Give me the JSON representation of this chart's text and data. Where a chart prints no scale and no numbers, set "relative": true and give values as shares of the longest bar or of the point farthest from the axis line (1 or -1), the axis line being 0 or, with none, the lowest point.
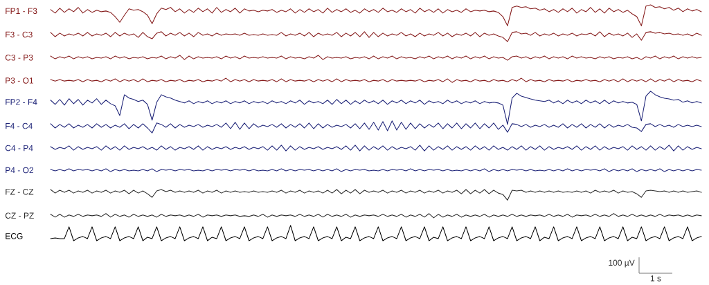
{
  "chart_data": {
    "type": "line",
    "relative": true,
    "categories": [
      null,
      null,
      null,
      null,
      null,
      null,
      null,
      null,
      null,
      null,
      null,
      null,
      null,
      null,
      null,
      null,
      null,
      null,
      null,
      null,
      null,
      null,
      null,
      null,
      null,
      null,
      null,
      null,
      null,
      null,
      null,
      null,
      null,
      null,
      null,
      null,
      null,
      null,
      null,
      null,
      null,
      null,
      null,
      null,
      null,
      null,
      null,
      null,
      null,
      null,
      null,
      null,
      null,
      null,
      null,
      null,
      null,
      null,
      null,
      null,
      null,
      null,
      null,
      null,
      null,
      null,
      null,
      null,
      null,
      null,
      null,
      null,
      null,
      null,
      null,
      null,
      null,
      null,
      null,
      null,
      null,
      null,
      null,
      null,
      null,
      null,
      null,
      null,
      null,
      null,
      null,
      null,
      null,
      null,
      null,
      null,
      null,
      null,
      null,
      null,
      null,
      null,
      null,
      null,
      null,
      null,
      null,
      null,
      null,
      null,
      null,
      null,
      null,
      null,
      null,
      null,
      null,
      null,
      null,
      null,
      null,
      null,
      null,
      null,
      null,
      null,
      null,
      null,
      null,
      null,
      null,
      null,
      null,
      null,
      null,
      null,
      null,
      null,
      null,
      null,
      null,
      null
    ],
    "series": [
      {
        "name": "FP1 - F3",
        "color": "#861c1c",
        "values": [
          0.98,
          0.965,
          0.986,
          0.968,
          0.983,
          0.971,
          0.989,
          0.965,
          0.98,
          0.968,
          0.977,
          0.971,
          0.974,
          0.968,
          0.95,
          0.926,
          0.956,
          0.983,
          0.977,
          0.98,
          0.971,
          0.956,
          0.92,
          0.962,
          0.986,
          0.98,
          0.989,
          0.971,
          0.983,
          0.965,
          0.98,
          0.968,
          0.986,
          0.971,
          0.983,
          0.965,
          0.989,
          0.968,
          0.98,
          0.971,
          0.986,
          0.965,
          0.983,
          0.974,
          0.977,
          0.971,
          0.977,
          0.974,
          0.98,
          0.968,
          0.977,
          0.971,
          0.983,
          0.965,
          0.98,
          0.968,
          0.983,
          0.971,
          0.98,
          0.965,
          0.986,
          0.968,
          0.98,
          0.971,
          0.983,
          0.968,
          0.977,
          0.965,
          0.983,
          0.971,
          0.98,
          0.968,
          0.986,
          0.971,
          0.977,
          0.968,
          0.983,
          0.971,
          0.98,
          0.965,
          0.986,
          0.971,
          0.98,
          0.968,
          0.983,
          0.965,
          0.98,
          0.971,
          0.977,
          0.968,
          0.983,
          0.971,
          0.977,
          0.974,
          0.977,
          0.971,
          0.974,
          0.968,
          0.95,
          0.911,
          0.989,
          0.995,
          0.989,
          0.992,
          0.983,
          0.986,
          0.977,
          0.983,
          0.971,
          0.98,
          0.968,
          0.983,
          0.971,
          0.986,
          0.965,
          0.98,
          0.971,
          0.989,
          0.968,
          0.983,
          0.965,
          0.986,
          0.971,
          0.98,
          0.968,
          0.977,
          0.962,
          0.95,
          0.911,
          0.995,
          1.0,
          0.989,
          0.992,
          0.983,
          0.989,
          0.977,
          0.986,
          0.971,
          0.983,
          0.974,
          0.98,
          0.971
        ]
      },
      {
        "name": "F3 - C3",
        "color": "#861c1c",
        "values": [
          0.883,
          0.865,
          0.88,
          0.868,
          0.877,
          0.871,
          0.88,
          0.868,
          0.883,
          0.868,
          0.877,
          0.871,
          0.88,
          0.865,
          0.883,
          0.868,
          0.88,
          0.871,
          0.877,
          0.862,
          0.883,
          0.865,
          0.856,
          0.88,
          0.886,
          0.868,
          0.88,
          0.871,
          0.883,
          0.868,
          0.88,
          0.865,
          0.883,
          0.871,
          0.877,
          0.868,
          0.88,
          0.871,
          0.877,
          0.874,
          0.877,
          0.871,
          0.88,
          0.871,
          0.874,
          0.871,
          0.877,
          0.871,
          0.874,
          0.871,
          0.883,
          0.868,
          0.877,
          0.871,
          0.88,
          0.868,
          0.883,
          0.865,
          0.88,
          0.871,
          0.877,
          0.871,
          0.883,
          0.865,
          0.88,
          0.868,
          0.883,
          0.865,
          0.886,
          0.862,
          0.883,
          0.865,
          0.88,
          0.868,
          0.877,
          0.871,
          0.883,
          0.868,
          0.877,
          0.865,
          0.88,
          0.868,
          0.877,
          0.871,
          0.883,
          0.868,
          0.88,
          0.865,
          0.877,
          0.871,
          0.88,
          0.868,
          0.883,
          0.865,
          0.88,
          0.871,
          0.877,
          0.868,
          0.862,
          0.844,
          0.883,
          0.886,
          0.877,
          0.88,
          0.871,
          0.883,
          0.868,
          0.877,
          0.871,
          0.88,
          0.868,
          0.877,
          0.871,
          0.88,
          0.868,
          0.877,
          0.874,
          0.88,
          0.868,
          0.886,
          0.865,
          0.88,
          0.871,
          0.877,
          0.868,
          0.88,
          0.862,
          0.877,
          0.85,
          0.883,
          0.886,
          0.88,
          0.883,
          0.877,
          0.88,
          0.874,
          0.877,
          0.871,
          0.877,
          0.868,
          0.88,
          0.871
        ]
      },
      {
        "name": "C3 - P3",
        "color": "#861c1c",
        "values": [
          0.783,
          0.771,
          0.78,
          0.774,
          0.783,
          0.771,
          0.78,
          0.774,
          0.78,
          0.771,
          0.777,
          0.774,
          0.78,
          0.771,
          0.783,
          0.774,
          0.78,
          0.771,
          0.777,
          0.774,
          0.78,
          0.771,
          0.777,
          0.774,
          0.783,
          0.771,
          0.78,
          0.774,
          0.786,
          0.768,
          0.783,
          0.771,
          0.78,
          0.774,
          0.777,
          0.774,
          0.78,
          0.771,
          0.783,
          0.774,
          0.78,
          0.771,
          0.783,
          0.774,
          0.777,
          0.774,
          0.78,
          0.774,
          0.777,
          0.774,
          0.783,
          0.771,
          0.78,
          0.774,
          0.777,
          0.771,
          0.78,
          0.774,
          0.786,
          0.768,
          0.78,
          0.774,
          0.777,
          0.774,
          0.78,
          0.771,
          0.777,
          0.774,
          0.78,
          0.771,
          0.783,
          0.771,
          0.78,
          0.774,
          0.783,
          0.771,
          0.78,
          0.774,
          0.777,
          0.771,
          0.78,
          0.774,
          0.783,
          0.771,
          0.78,
          0.774,
          0.783,
          0.771,
          0.78,
          0.774,
          0.783,
          0.771,
          0.78,
          0.774,
          0.783,
          0.771,
          0.78,
          0.774,
          0.777,
          0.765,
          0.78,
          0.783,
          0.774,
          0.78,
          0.771,
          0.78,
          0.774,
          0.783,
          0.771,
          0.78,
          0.774,
          0.78,
          0.771,
          0.783,
          0.774,
          0.78,
          0.774,
          0.777,
          0.771,
          0.78,
          0.774,
          0.78,
          0.771,
          0.777,
          0.774,
          0.78,
          0.771,
          0.777,
          0.768,
          0.78,
          0.774,
          0.783,
          0.771,
          0.78,
          0.774,
          0.783,
          0.771,
          0.78,
          0.774,
          0.78,
          0.774,
          0.777
        ]
      },
      {
        "name": "P3 - O1",
        "color": "#861c1c",
        "values": [
          0.683,
          0.677,
          0.683,
          0.677,
          0.68,
          0.677,
          0.683,
          0.674,
          0.683,
          0.677,
          0.68,
          0.674,
          0.683,
          0.677,
          0.686,
          0.674,
          0.683,
          0.677,
          0.683,
          0.674,
          0.686,
          0.674,
          0.68,
          0.677,
          0.683,
          0.674,
          0.68,
          0.677,
          0.683,
          0.674,
          0.68,
          0.677,
          0.683,
          0.674,
          0.68,
          0.677,
          0.683,
          0.677,
          0.689,
          0.674,
          0.683,
          0.677,
          0.683,
          0.674,
          0.683,
          0.677,
          0.68,
          0.677,
          0.683,
          0.674,
          0.686,
          0.674,
          0.683,
          0.677,
          0.68,
          0.677,
          0.683,
          0.674,
          0.683,
          0.677,
          0.683,
          0.674,
          0.686,
          0.674,
          0.683,
          0.677,
          0.68,
          0.677,
          0.683,
          0.674,
          0.68,
          0.677,
          0.683,
          0.674,
          0.683,
          0.677,
          0.68,
          0.677,
          0.68,
          0.677,
          0.683,
          0.674,
          0.68,
          0.677,
          0.683,
          0.674,
          0.686,
          0.671,
          0.683,
          0.677,
          0.68,
          0.674,
          0.683,
          0.677,
          0.68,
          0.674,
          0.683,
          0.677,
          0.68,
          0.674,
          0.683,
          0.677,
          0.689,
          0.674,
          0.683,
          0.677,
          0.68,
          0.674,
          0.683,
          0.677,
          0.68,
          0.677,
          0.683,
          0.674,
          0.68,
          0.677,
          0.683,
          0.677,
          0.68,
          0.674,
          0.683,
          0.677,
          0.683,
          0.674,
          0.686,
          0.674,
          0.683,
          0.677,
          0.683,
          0.674,
          0.686,
          0.674,
          0.683,
          0.677,
          0.686,
          0.674,
          0.683,
          0.677,
          0.68,
          0.674,
          0.683,
          0.677
        ]
      },
      {
        "name": "FP2 - F4",
        "color": "#1c2277",
        "values": [
          0.596,
          0.578,
          0.599,
          0.575,
          0.602,
          0.581,
          0.599,
          0.575,
          0.596,
          0.584,
          0.602,
          0.578,
          0.596,
          0.581,
          0.572,
          0.531,
          0.619,
          0.605,
          0.599,
          0.59,
          0.596,
          0.578,
          0.511,
          0.587,
          0.619,
          0.61,
          0.605,
          0.596,
          0.59,
          0.584,
          0.593,
          0.581,
          0.59,
          0.584,
          0.593,
          0.581,
          0.59,
          0.584,
          0.593,
          0.581,
          0.59,
          0.584,
          0.593,
          0.581,
          0.59,
          0.584,
          0.59,
          0.581,
          0.593,
          0.584,
          0.59,
          0.581,
          0.593,
          0.584,
          0.596,
          0.578,
          0.593,
          0.584,
          0.59,
          0.581,
          0.596,
          0.578,
          0.599,
          0.581,
          0.596,
          0.578,
          0.593,
          0.581,
          0.596,
          0.584,
          0.593,
          0.581,
          0.596,
          0.578,
          0.593,
          0.584,
          0.596,
          0.581,
          0.593,
          0.584,
          0.596,
          0.578,
          0.593,
          0.584,
          0.59,
          0.581,
          0.596,
          0.584,
          0.593,
          0.581,
          0.59,
          0.584,
          0.593,
          0.581,
          0.59,
          0.584,
          0.587,
          0.584,
          0.575,
          0.493,
          0.605,
          0.625,
          0.613,
          0.607,
          0.601,
          0.596,
          0.593,
          0.59,
          0.596,
          0.584,
          0.593,
          0.581,
          0.596,
          0.584,
          0.593,
          0.581,
          0.596,
          0.584,
          0.593,
          0.581,
          0.596,
          0.581,
          0.593,
          0.584,
          0.59,
          0.584,
          0.587,
          0.578,
          0.508,
          0.613,
          0.634,
          0.619,
          0.61,
          0.604,
          0.601,
          0.596,
          0.599,
          0.587,
          0.593,
          0.584,
          0.59,
          0.584
        ]
      },
      {
        "name": "F4 - C4",
        "color": "#1c2277",
        "values": [
          0.496,
          0.478,
          0.493,
          0.481,
          0.496,
          0.478,
          0.49,
          0.481,
          0.493,
          0.478,
          0.496,
          0.481,
          0.493,
          0.478,
          0.49,
          0.481,
          0.496,
          0.475,
          0.493,
          0.478,
          0.496,
          0.478,
          0.457,
          0.499,
          0.493,
          0.481,
          0.496,
          0.478,
          0.493,
          0.481,
          0.49,
          0.484,
          0.493,
          0.481,
          0.49,
          0.484,
          0.493,
          0.481,
          0.499,
          0.475,
          0.502,
          0.472,
          0.499,
          0.475,
          0.496,
          0.481,
          0.49,
          0.484,
          0.493,
          0.481,
          0.496,
          0.478,
          0.493,
          0.481,
          0.496,
          0.478,
          0.499,
          0.475,
          0.496,
          0.478,
          0.493,
          0.481,
          0.49,
          0.484,
          0.493,
          0.478,
          0.496,
          0.475,
          0.499,
          0.472,
          0.502,
          0.469,
          0.505,
          0.466,
          0.508,
          0.469,
          0.502,
          0.472,
          0.499,
          0.475,
          0.496,
          0.478,
          0.493,
          0.481,
          0.499,
          0.475,
          0.496,
          0.478,
          0.499,
          0.475,
          0.496,
          0.478,
          0.499,
          0.475,
          0.496,
          0.478,
          0.499,
          0.472,
          0.49,
          0.46,
          0.496,
          0.493,
          0.484,
          0.493,
          0.481,
          0.49,
          0.484,
          0.493,
          0.481,
          0.49,
          0.481,
          0.496,
          0.478,
          0.493,
          0.481,
          0.496,
          0.478,
          0.493,
          0.481,
          0.496,
          0.478,
          0.493,
          0.481,
          0.49,
          0.484,
          0.493,
          0.481,
          0.478,
          0.463,
          0.493,
          0.496,
          0.484,
          0.493,
          0.484,
          0.49,
          0.481,
          0.493,
          0.484,
          0.49,
          0.484,
          0.49,
          0.484
        ]
      },
      {
        "name": "C4 - P4",
        "color": "#1c2277",
        "values": [
          0.399,
          0.387,
          0.396,
          0.39,
          0.402,
          0.384,
          0.399,
          0.387,
          0.396,
          0.39,
          0.399,
          0.384,
          0.402,
          0.387,
          0.399,
          0.384,
          0.402,
          0.387,
          0.396,
          0.39,
          0.399,
          0.387,
          0.396,
          0.384,
          0.402,
          0.387,
          0.399,
          0.384,
          0.396,
          0.39,
          0.399,
          0.387,
          0.402,
          0.384,
          0.399,
          0.387,
          0.396,
          0.39,
          0.399,
          0.387,
          0.396,
          0.39,
          0.399,
          0.387,
          0.396,
          0.39,
          0.399,
          0.384,
          0.402,
          0.384,
          0.405,
          0.381,
          0.402,
          0.384,
          0.399,
          0.387,
          0.396,
          0.39,
          0.399,
          0.387,
          0.396,
          0.39,
          0.399,
          0.387,
          0.402,
          0.384,
          0.405,
          0.381,
          0.402,
          0.384,
          0.399,
          0.387,
          0.402,
          0.384,
          0.399,
          0.387,
          0.396,
          0.39,
          0.399,
          0.384,
          0.405,
          0.381,
          0.402,
          0.384,
          0.399,
          0.387,
          0.402,
          0.384,
          0.399,
          0.387,
          0.399,
          0.384,
          0.402,
          0.387,
          0.399,
          0.384,
          0.402,
          0.387,
          0.396,
          0.384,
          0.399,
          0.387,
          0.402,
          0.384,
          0.399,
          0.387,
          0.402,
          0.384,
          0.399,
          0.387,
          0.396,
          0.39,
          0.399,
          0.387,
          0.402,
          0.384,
          0.399,
          0.387,
          0.402,
          0.384,
          0.399,
          0.387,
          0.396,
          0.39,
          0.399,
          0.384,
          0.402,
          0.387,
          0.399,
          0.384,
          0.402,
          0.384,
          0.399,
          0.387,
          0.405,
          0.381,
          0.402,
          0.384,
          0.399,
          0.387,
          0.396,
          0.39
        ]
      },
      {
        "name": "P4 - O2",
        "color": "#1c2277",
        "values": [
          0.302,
          0.296,
          0.302,
          0.296,
          0.305,
          0.296,
          0.302,
          0.299,
          0.302,
          0.296,
          0.302,
          0.296,
          0.305,
          0.293,
          0.302,
          0.296,
          0.302,
          0.296,
          0.299,
          0.296,
          0.302,
          0.296,
          0.305,
          0.293,
          0.302,
          0.299,
          0.302,
          0.296,
          0.302,
          0.299,
          0.302,
          0.296,
          0.299,
          0.296,
          0.302,
          0.296,
          0.302,
          0.299,
          0.302,
          0.296,
          0.302,
          0.299,
          0.302,
          0.296,
          0.302,
          0.296,
          0.299,
          0.296,
          0.302,
          0.296,
          0.305,
          0.296,
          0.302,
          0.296,
          0.302,
          0.299,
          0.302,
          0.296,
          0.302,
          0.296,
          0.302,
          0.296,
          0.305,
          0.293,
          0.302,
          0.296,
          0.302,
          0.299,
          0.302,
          0.296,
          0.299,
          0.296,
          0.302,
          0.296,
          0.302,
          0.299,
          0.302,
          0.296,
          0.305,
          0.296,
          0.302,
          0.296,
          0.302,
          0.299,
          0.302,
          0.296,
          0.302,
          0.296,
          0.299,
          0.296,
          0.302,
          0.296,
          0.302,
          0.296,
          0.305,
          0.293,
          0.302,
          0.296,
          0.302,
          0.296,
          0.302,
          0.299,
          0.302,
          0.296,
          0.302,
          0.296,
          0.299,
          0.296,
          0.302,
          0.296,
          0.302,
          0.296,
          0.305,
          0.296,
          0.302,
          0.296,
          0.302,
          0.299,
          0.302,
          0.296,
          0.305,
          0.293,
          0.302,
          0.296,
          0.302,
          0.296,
          0.305,
          0.293,
          0.302,
          0.296,
          0.302,
          0.296,
          0.305,
          0.293,
          0.302,
          0.296,
          0.302,
          0.296,
          0.302,
          0.296,
          0.302,
          0.299
        ]
      },
      {
        "name": "FZ - CZ",
        "color": "#2a2a2a",
        "values": [
          0.217,
          0.202,
          0.214,
          0.205,
          0.214,
          0.202,
          0.211,
          0.205,
          0.214,
          0.202,
          0.211,
          0.205,
          0.214,
          0.202,
          0.211,
          0.205,
          0.214,
          0.199,
          0.214,
          0.202,
          0.211,
          0.199,
          0.184,
          0.211,
          0.217,
          0.208,
          0.214,
          0.205,
          0.211,
          0.205,
          0.211,
          0.205,
          0.214,
          0.202,
          0.211,
          0.205,
          0.214,
          0.202,
          0.211,
          0.205,
          0.211,
          0.205,
          0.208,
          0.205,
          0.211,
          0.205,
          0.208,
          0.205,
          0.211,
          0.205,
          0.214,
          0.202,
          0.211,
          0.205,
          0.214,
          0.202,
          0.211,
          0.205,
          0.211,
          0.202,
          0.214,
          0.202,
          0.217,
          0.199,
          0.214,
          0.202,
          0.217,
          0.199,
          0.214,
          0.205,
          0.211,
          0.205,
          0.214,
          0.202,
          0.211,
          0.205,
          0.214,
          0.202,
          0.211,
          0.205,
          0.214,
          0.202,
          0.211,
          0.205,
          0.214,
          0.202,
          0.211,
          0.205,
          0.214,
          0.199,
          0.217,
          0.199,
          0.214,
          0.202,
          0.217,
          0.199,
          0.214,
          0.202,
          0.196,
          0.172,
          0.214,
          0.211,
          0.214,
          0.205,
          0.211,
          0.205,
          0.211,
          0.205,
          0.211,
          0.205,
          0.211,
          0.205,
          0.208,
          0.205,
          0.211,
          0.205,
          0.211,
          0.202,
          0.214,
          0.205,
          0.211,
          0.205,
          0.214,
          0.202,
          0.211,
          0.205,
          0.208,
          0.199,
          0.184,
          0.211,
          0.214,
          0.211,
          0.208,
          0.211,
          0.205,
          0.211,
          0.205,
          0.211,
          0.205,
          0.208,
          0.211,
          0.205
        ]
      },
      {
        "name": "CZ - PZ",
        "color": "#2a2a2a",
        "values": [
          0.112,
          0.1,
          0.112,
          0.1,
          0.109,
          0.103,
          0.112,
          0.103,
          0.109,
          0.106,
          0.109,
          0.103,
          0.115,
          0.1,
          0.112,
          0.103,
          0.109,
          0.1,
          0.112,
          0.103,
          0.109,
          0.103,
          0.109,
          0.1,
          0.112,
          0.103,
          0.109,
          0.106,
          0.109,
          0.103,
          0.109,
          0.103,
          0.112,
          0.1,
          0.109,
          0.106,
          0.109,
          0.103,
          0.109,
          0.106,
          0.109,
          0.103,
          0.106,
          0.103,
          0.109,
          0.103,
          0.112,
          0.1,
          0.109,
          0.103,
          0.109,
          0.106,
          0.109,
          0.103,
          0.112,
          0.103,
          0.109,
          0.103,
          0.112,
          0.1,
          0.112,
          0.103,
          0.109,
          0.103,
          0.112,
          0.1,
          0.109,
          0.103,
          0.109,
          0.106,
          0.109,
          0.103,
          0.112,
          0.103,
          0.109,
          0.103,
          0.112,
          0.1,
          0.109,
          0.103,
          0.112,
          0.1,
          0.115,
          0.097,
          0.112,
          0.1,
          0.109,
          0.103,
          0.112,
          0.1,
          0.109,
          0.103,
          0.109,
          0.103,
          0.112,
          0.1,
          0.109,
          0.103,
          0.109,
          0.103,
          0.112,
          0.103,
          0.109,
          0.103,
          0.109,
          0.106,
          0.109,
          0.103,
          0.112,
          0.103,
          0.109,
          0.103,
          0.112,
          0.1,
          0.109,
          0.106,
          0.109,
          0.103,
          0.112,
          0.103,
          0.109,
          0.103,
          0.115,
          0.103,
          0.109,
          0.103,
          0.112,
          0.103,
          0.109,
          0.103,
          0.109,
          0.103,
          0.112,
          0.103,
          0.109,
          0.106,
          0.109,
          0.103,
          0.109,
          0.103,
          0.109,
          0.106
        ]
      },
      {
        "name": "ECG",
        "color": "#000000",
        "values": [
          0.009,
          0.012,
          0.009,
          0.009,
          0.059,
          0.0,
          0.012,
          0.018,
          0.009,
          0.059,
          0.0,
          0.012,
          0.018,
          0.009,
          0.059,
          0.0,
          0.012,
          0.018,
          0.009,
          0.059,
          0.0,
          0.015,
          0.009,
          0.059,
          0.0,
          0.012,
          0.018,
          0.009,
          0.059,
          0.0,
          0.012,
          0.018,
          0.009,
          0.059,
          0.0,
          0.015,
          0.009,
          0.059,
          0.0,
          0.012,
          0.018,
          0.009,
          0.059,
          0.0,
          0.012,
          0.018,
          0.009,
          0.059,
          0.0,
          0.012,
          0.018,
          0.009,
          0.065,
          0.0,
          0.012,
          0.018,
          0.009,
          0.059,
          0.0,
          0.012,
          0.018,
          0.009,
          0.059,
          0.0,
          0.015,
          0.009,
          0.059,
          0.0,
          0.012,
          0.018,
          0.009,
          0.059,
          0.0,
          0.012,
          0.018,
          0.009,
          0.059,
          0.0,
          0.012,
          0.018,
          0.009,
          0.059,
          0.0,
          0.015,
          0.009,
          0.059,
          0.0,
          0.012,
          0.018,
          0.009,
          0.059,
          0.0,
          0.012,
          0.018,
          0.009,
          0.059,
          0.0,
          0.012,
          0.018,
          0.009,
          0.059,
          0.0,
          0.012,
          0.018,
          0.009,
          0.059,
          0.0,
          0.015,
          0.009,
          0.059,
          0.0,
          0.012,
          0.018,
          0.009,
          0.059,
          0.0,
          0.012,
          0.018,
          0.009,
          0.059,
          0.0,
          0.012,
          0.018,
          0.009,
          0.059,
          0.0,
          0.015,
          0.009,
          0.059,
          0.0,
          0.012,
          0.018,
          0.009,
          0.059,
          0.0,
          0.012,
          0.018,
          0.009,
          0.059,
          0.0,
          0.012,
          0.018
        ]
      }
    ],
    "annotations": [
      "100 µV",
      "1 s"
    ]
  }
}
